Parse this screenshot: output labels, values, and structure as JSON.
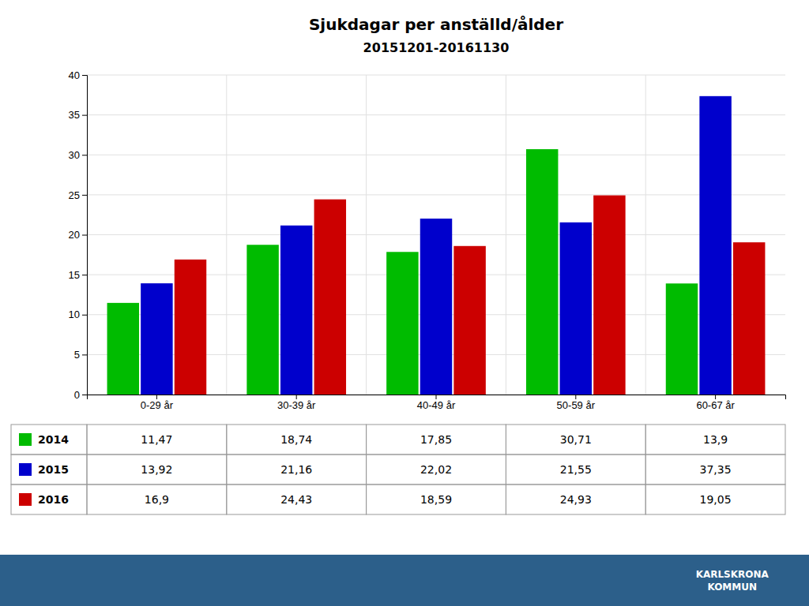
{
  "chart_data": {
    "type": "bar",
    "title": "Sjukdagar per anställd/ålder",
    "subtitle": "20151201-20161130",
    "categories": [
      "0-29 år",
      "30-39 år",
      "40-49 år",
      "50-59 år",
      "60-67 år"
    ],
    "series": [
      {
        "name": "2014",
        "color": "#00bb00",
        "values": [
          11.47,
          18.74,
          17.85,
          30.71,
          13.9
        ],
        "value_labels": [
          "11,47",
          "18,74",
          "17,85",
          "30,71",
          "13,9"
        ]
      },
      {
        "name": "2015",
        "color": "#0000cc",
        "values": [
          13.92,
          21.16,
          22.02,
          21.55,
          37.35
        ],
        "value_labels": [
          "13,92",
          "21,16",
          "22,02",
          "21,55",
          "37,35"
        ]
      },
      {
        "name": "2016",
        "color": "#cc0000",
        "values": [
          16.9,
          24.43,
          18.59,
          24.93,
          19.05
        ],
        "value_labels": [
          "16,9",
          "24,43",
          "18,59",
          "24,93",
          "19,05"
        ]
      }
    ],
    "ylim": [
      0,
      40
    ],
    "yticks": [
      0,
      5,
      10,
      15,
      20,
      25,
      30,
      35,
      40
    ],
    "grid": true,
    "annotations": [
      "KARLSKRONA\nKOMMUN"
    ]
  }
}
